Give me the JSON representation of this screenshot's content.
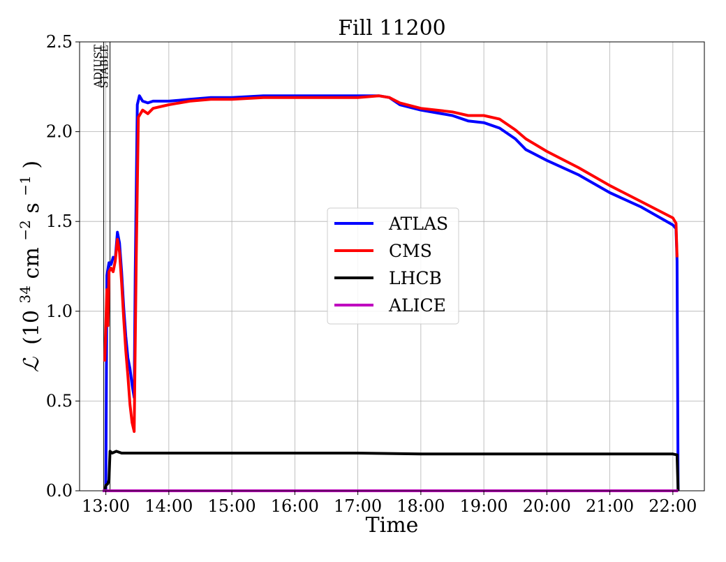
{
  "chart_data": {
    "type": "line",
    "title": "Fill 11200",
    "xlabel": "Time",
    "ylabel": {
      "symbol": "ℒ",
      "text_before": "(10",
      "exp1": "34",
      "text_mid": " cm",
      "exp2": "−2",
      "text_mid2": "s",
      "exp3": "−1",
      "text_after": ")"
    },
    "xlim": [
      "12:35",
      "22:30"
    ],
    "ylim": [
      0.0,
      2.5
    ],
    "x_ticks": [
      "13:00",
      "14:00",
      "15:00",
      "16:00",
      "17:00",
      "18:00",
      "19:00",
      "20:00",
      "21:00",
      "22:00"
    ],
    "y_ticks": [
      "0.0",
      "0.5",
      "1.0",
      "1.5",
      "2.0",
      "2.5"
    ],
    "grid": true,
    "legend_position": "center-right",
    "event_lines": [
      {
        "label": "ADJUST",
        "time": "12:58"
      },
      {
        "label": "STABLE",
        "time": "13:04"
      }
    ],
    "series": [
      {
        "name": "ATLAS",
        "color": "#0000ff",
        "points": [
          [
            "12:57",
            0.0
          ],
          [
            "13:00",
            0.0
          ],
          [
            "13:01",
            1.2
          ],
          [
            "13:03",
            1.27
          ],
          [
            "13:05",
            1.26
          ],
          [
            "13:07",
            1.3
          ],
          [
            "13:09",
            1.29
          ],
          [
            "13:11",
            1.44
          ],
          [
            "13:13",
            1.38
          ],
          [
            "13:15",
            1.22
          ],
          [
            "13:17",
            1.02
          ],
          [
            "13:19",
            0.86
          ],
          [
            "13:21",
            0.74
          ],
          [
            "13:23",
            0.68
          ],
          [
            "13:25",
            0.59
          ],
          [
            "13:27",
            0.52
          ],
          [
            "13:28",
            1.2
          ],
          [
            "13:30",
            2.15
          ],
          [
            "13:32",
            2.2
          ],
          [
            "13:35",
            2.17
          ],
          [
            "13:40",
            2.16
          ],
          [
            "13:45",
            2.17
          ],
          [
            "14:00",
            2.17
          ],
          [
            "14:20",
            2.18
          ],
          [
            "14:40",
            2.19
          ],
          [
            "15:00",
            2.19
          ],
          [
            "15:30",
            2.2
          ],
          [
            "16:00",
            2.2
          ],
          [
            "16:30",
            2.2
          ],
          [
            "17:00",
            2.2
          ],
          [
            "17:20",
            2.2
          ],
          [
            "17:30",
            2.19
          ],
          [
            "17:40",
            2.15
          ],
          [
            "18:00",
            2.12
          ],
          [
            "18:30",
            2.09
          ],
          [
            "18:45",
            2.06
          ],
          [
            "19:00",
            2.05
          ],
          [
            "19:15",
            2.02
          ],
          [
            "19:30",
            1.96
          ],
          [
            "19:40",
            1.9
          ],
          [
            "20:00",
            1.84
          ],
          [
            "20:30",
            1.76
          ],
          [
            "21:00",
            1.66
          ],
          [
            "21:30",
            1.58
          ],
          [
            "22:00",
            1.48
          ],
          [
            "22:03",
            1.46
          ],
          [
            "22:04",
            1.28
          ],
          [
            "22:05",
            0.0
          ]
        ]
      },
      {
        "name": "CMS",
        "color": "#ff0000",
        "points": [
          [
            "12:59",
            0.72
          ],
          [
            "13:01",
            1.12
          ],
          [
            "13:02",
            0.92
          ],
          [
            "13:03",
            1.22
          ],
          [
            "13:05",
            1.24
          ],
          [
            "13:07",
            1.22
          ],
          [
            "13:09",
            1.28
          ],
          [
            "13:11",
            1.4
          ],
          [
            "13:13",
            1.33
          ],
          [
            "13:15",
            1.16
          ],
          [
            "13:17",
            0.96
          ],
          [
            "13:19",
            0.78
          ],
          [
            "13:21",
            0.64
          ],
          [
            "13:23",
            0.48
          ],
          [
            "13:25",
            0.38
          ],
          [
            "13:27",
            0.33
          ],
          [
            "13:29",
            1.3
          ],
          [
            "13:31",
            2.08
          ],
          [
            "13:35",
            2.12
          ],
          [
            "13:40",
            2.1
          ],
          [
            "13:45",
            2.13
          ],
          [
            "14:00",
            2.15
          ],
          [
            "14:20",
            2.17
          ],
          [
            "14:40",
            2.18
          ],
          [
            "15:00",
            2.18
          ],
          [
            "15:30",
            2.19
          ],
          [
            "16:00",
            2.19
          ],
          [
            "16:30",
            2.19
          ],
          [
            "17:00",
            2.19
          ],
          [
            "17:20",
            2.2
          ],
          [
            "17:30",
            2.19
          ],
          [
            "17:40",
            2.16
          ],
          [
            "18:00",
            2.13
          ],
          [
            "18:30",
            2.11
          ],
          [
            "18:45",
            2.09
          ],
          [
            "19:00",
            2.09
          ],
          [
            "19:15",
            2.07
          ],
          [
            "19:30",
            2.01
          ],
          [
            "19:40",
            1.96
          ],
          [
            "20:00",
            1.89
          ],
          [
            "20:30",
            1.8
          ],
          [
            "21:00",
            1.7
          ],
          [
            "21:30",
            1.61
          ],
          [
            "22:00",
            1.52
          ],
          [
            "22:03",
            1.49
          ],
          [
            "22:04",
            1.3
          ]
        ]
      },
      {
        "name": "LHCB",
        "color": "#000000",
        "points": [
          [
            "12:59",
            0.0
          ],
          [
            "13:00",
            0.03
          ],
          [
            "13:02",
            0.04
          ],
          [
            "13:03",
            0.06
          ],
          [
            "13:04",
            0.22
          ],
          [
            "13:06",
            0.21
          ],
          [
            "13:10",
            0.22
          ],
          [
            "13:15",
            0.21
          ],
          [
            "13:30",
            0.21
          ],
          [
            "14:00",
            0.21
          ],
          [
            "15:00",
            0.21
          ],
          [
            "16:00",
            0.21
          ],
          [
            "17:00",
            0.21
          ],
          [
            "18:00",
            0.205
          ],
          [
            "19:00",
            0.205
          ],
          [
            "20:00",
            0.205
          ],
          [
            "21:00",
            0.205
          ],
          [
            "22:00",
            0.205
          ],
          [
            "22:04",
            0.2
          ],
          [
            "22:05",
            0.0
          ]
        ]
      },
      {
        "name": "ALICE",
        "color": "#bf00bf",
        "points": [
          [
            "12:57",
            0.0
          ],
          [
            "22:05",
            0.0
          ]
        ]
      }
    ]
  }
}
